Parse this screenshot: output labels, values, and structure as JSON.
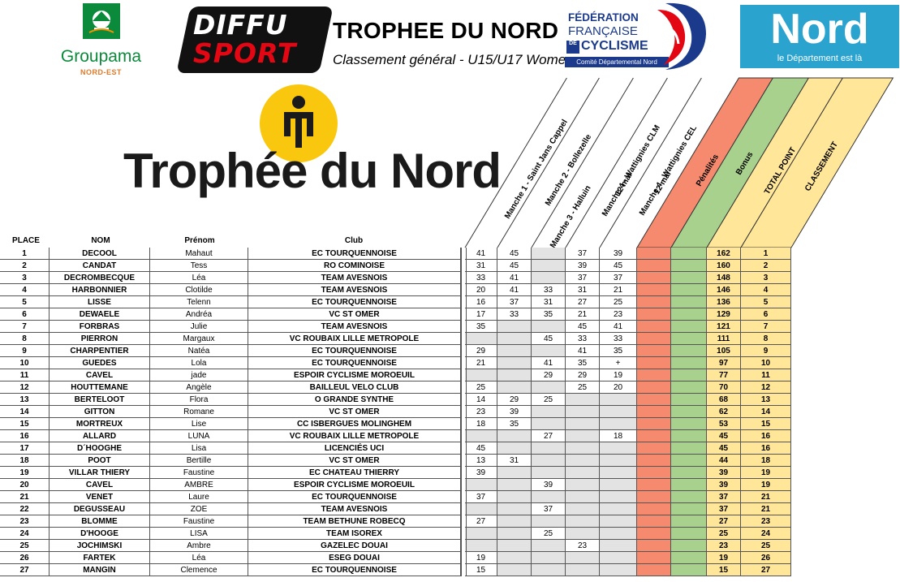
{
  "header": {
    "title": "TROPHEE DU NORD",
    "subtitle": "Classement général - U15/U17 Women",
    "groupama_name": "Groupama",
    "groupama_sub": "NORD-EST",
    "diffu_line1": "DIFFU",
    "diffu_line2": "SPORT",
    "ffc_line1": "FÉDÉRATION",
    "ffc_line2": "FRANÇAISE",
    "ffc_de": "DE",
    "ffc_line3": "CYCLISME",
    "ffc_line4": "Comité Départemental Nord",
    "nord_name": "Nord",
    "nord_tagline": "le Département est là",
    "trophy_text": "Trophée du Nord"
  },
  "columns": {
    "place": "PLACE",
    "nom": "NOM",
    "prenom": "Prénom",
    "club": "Club",
    "m1": "Manche 1 - Saint Jans Cappel",
    "m2": "Manche 2 - Bollezelle",
    "m3": "Manche 3 - Halluin",
    "m4a_line1": "Manche 4 - Wattignies CLM",
    "m4a_line2": "12 mai",
    "m4b_line1": "Manche 4 - Wattignies CEL",
    "m4b_line2": "12 mai",
    "penalites": "Pénalités",
    "bonus": "Bonus",
    "total": "TOTAL POINT",
    "classement": "CLASSEMENT"
  },
  "colors": {
    "penalites": "#f58a6e",
    "bonus": "#a9d18e",
    "total": "#ffe699",
    "shaded": "#e3e3e3"
  },
  "rows": [
    {
      "place": "1",
      "nom": "DECOOL",
      "prenom": "Mahaut",
      "club": "EC TOURQUENNOISE",
      "m1": "41",
      "m2": "45",
      "m3": "",
      "m4a": "37",
      "m4b": "39",
      "total": "162",
      "rank": "1"
    },
    {
      "place": "2",
      "nom": "CANDAT",
      "prenom": "Tess",
      "club": "RO COMINOISE",
      "m1": "31",
      "m2": "45",
      "m3": "",
      "m4a": "39",
      "m4b": "45",
      "total": "160",
      "rank": "2"
    },
    {
      "place": "3",
      "nom": "DECROMBECQUE",
      "prenom": "Léa",
      "club": "TEAM AVESNOIS",
      "m1": "33",
      "m2": "41",
      "m3": "",
      "m4a": "37",
      "m4b": "37",
      "total": "148",
      "rank": "3"
    },
    {
      "place": "4",
      "nom": "HARBONNIER",
      "prenom": "Clotilde",
      "club": "TEAM AVESNOIS",
      "m1": "20",
      "m2": "41",
      "m3": "33",
      "m4a": "31",
      "m4b": "21",
      "total": "146",
      "rank": "4"
    },
    {
      "place": "5",
      "nom": "LISSE",
      "prenom": "Telenn",
      "club": "EC TOURQUENNOISE",
      "m1": "16",
      "m2": "37",
      "m3": "31",
      "m4a": "27",
      "m4b": "25",
      "total": "136",
      "rank": "5"
    },
    {
      "place": "6",
      "nom": "DEWAELE",
      "prenom": "Andréa",
      "club": "VC ST OMER",
      "m1": "17",
      "m2": "33",
      "m3": "35",
      "m4a": "21",
      "m4b": "23",
      "total": "129",
      "rank": "6"
    },
    {
      "place": "7",
      "nom": "FORBRAS",
      "prenom": "Julie",
      "club": "TEAM AVESNOIS",
      "m1": "35",
      "m2": "",
      "m3": "",
      "m4a": "45",
      "m4b": "41",
      "total": "121",
      "rank": "7"
    },
    {
      "place": "8",
      "nom": "PIERRON",
      "prenom": "Margaux",
      "club": "VC ROUBAIX LILLE METROPOLE",
      "m1": "",
      "m2": "",
      "m3": "45",
      "m4a": "33",
      "m4b": "33",
      "total": "111",
      "rank": "8"
    },
    {
      "place": "9",
      "nom": "CHARPENTIER",
      "prenom": "Natéa",
      "club": "EC TOURQUENNOISE",
      "m1": "29",
      "m2": "",
      "m3": "",
      "m4a": "41",
      "m4b": "35",
      "total": "105",
      "rank": "9"
    },
    {
      "place": "10",
      "nom": "GUEDES",
      "prenom": "Lola",
      "club": "EC TOURQUENNOISE",
      "m1": "21",
      "m2": "",
      "m3": "41",
      "m4a": "35",
      "m4b": "+",
      "total": "97",
      "rank": "10"
    },
    {
      "place": "11",
      "nom": "CAVEL",
      "prenom": "jade",
      "club": "ESPOIR CYCLISME MOROEUIL",
      "m1": "",
      "m2": "",
      "m3": "29",
      "m4a": "29",
      "m4b": "19",
      "total": "77",
      "rank": "11"
    },
    {
      "place": "12",
      "nom": "HOUTTEMANE",
      "prenom": "Angèle",
      "club": "BAILLEUL VELO CLUB",
      "m1": "25",
      "m2": "",
      "m3": "",
      "m4a": "25",
      "m4b": "20",
      "total": "70",
      "rank": "12"
    },
    {
      "place": "13",
      "nom": "BERTELOOT",
      "prenom": "Flora",
      "club": "O GRANDE SYNTHE",
      "m1": "14",
      "m2": "29",
      "m3": "25",
      "m4a": "",
      "m4b": "",
      "total": "68",
      "rank": "13"
    },
    {
      "place": "14",
      "nom": "GITTON",
      "prenom": "Romane",
      "club": "VC ST OMER",
      "m1": "23",
      "m2": "39",
      "m3": "",
      "m4a": "",
      "m4b": "",
      "total": "62",
      "rank": "14"
    },
    {
      "place": "15",
      "nom": "MORTREUX",
      "prenom": "Lise",
      "club": "CC ISBERGUES MOLINGHEM",
      "m1": "18",
      "m2": "35",
      "m3": "",
      "m4a": "",
      "m4b": "",
      "total": "53",
      "rank": "15"
    },
    {
      "place": "16",
      "nom": "ALLARD",
      "prenom": "LUNA",
      "club": "VC ROUBAIX LILLE METROPOLE",
      "m1": "",
      "m2": "",
      "m3": "27",
      "m4a": "",
      "m4b": "18",
      "total": "45",
      "rank": "16"
    },
    {
      "place": "17",
      "nom": "D´HOOGHE",
      "prenom": "Lisa",
      "club": "LICENCIÉS UCI",
      "m1": "45",
      "m2": "",
      "m3": "",
      "m4a": "",
      "m4b": "",
      "total": "45",
      "rank": "16"
    },
    {
      "place": "18",
      "nom": "POOT",
      "prenom": "Bertille",
      "club": "VC ST OMER",
      "m1": "13",
      "m2": "31",
      "m3": "",
      "m4a": "",
      "m4b": "",
      "total": "44",
      "rank": "18"
    },
    {
      "place": "19",
      "nom": "VILLAR THIERY",
      "prenom": "Faustine",
      "club": "EC CHATEAU THIERRY",
      "m1": "39",
      "m2": "",
      "m3": "",
      "m4a": "",
      "m4b": "",
      "total": "39",
      "rank": "19"
    },
    {
      "place": "20",
      "nom": "CAVEL",
      "prenom": "AMBRE",
      "club": "ESPOIR CYCLISME MOROEUIL",
      "m1": "",
      "m2": "",
      "m3": "39",
      "m4a": "",
      "m4b": "",
      "total": "39",
      "rank": "19"
    },
    {
      "place": "21",
      "nom": "VENET",
      "prenom": "Laure",
      "club": "EC TOURQUENNOISE",
      "m1": "37",
      "m2": "",
      "m3": "",
      "m4a": "",
      "m4b": "",
      "total": "37",
      "rank": "21"
    },
    {
      "place": "22",
      "nom": "DEGUSSEAU",
      "prenom": "ZOE",
      "club": "TEAM AVESNOIS",
      "m1": "",
      "m2": "",
      "m3": "37",
      "m4a": "",
      "m4b": "",
      "total": "37",
      "rank": "21"
    },
    {
      "place": "23",
      "nom": "BLOMME",
      "prenom": "Faustine",
      "club": "TEAM BETHUNE ROBECQ",
      "m1": "27",
      "m2": "",
      "m3": "",
      "m4a": "",
      "m4b": "",
      "total": "27",
      "rank": "23"
    },
    {
      "place": "24",
      "nom": "D'HOOGE",
      "prenom": "LISA",
      "club": "TEAM ISOREX",
      "m1": "",
      "m2": "",
      "m3": "25",
      "m4a": "",
      "m4b": "",
      "total": "25",
      "rank": "24"
    },
    {
      "place": "25",
      "nom": "JOCHIMSKI",
      "prenom": "Ambre",
      "club": "GAZELEC DOUAI",
      "m1": "",
      "m2": "",
      "m3": "",
      "m4a": "23",
      "m4b": "",
      "total": "23",
      "rank": "25"
    },
    {
      "place": "26",
      "nom": "FARTEK",
      "prenom": "Léa",
      "club": "ESEG DOUAI",
      "m1": "19",
      "m2": "",
      "m3": "",
      "m4a": "",
      "m4b": "",
      "total": "19",
      "rank": "26"
    },
    {
      "place": "27",
      "nom": "MANGIN",
      "prenom": "Clemence",
      "club": "EC TOURQUENNOISE",
      "m1": "15",
      "m2": "",
      "m3": "",
      "m4a": "",
      "m4b": "",
      "total": "15",
      "rank": "27"
    }
  ]
}
